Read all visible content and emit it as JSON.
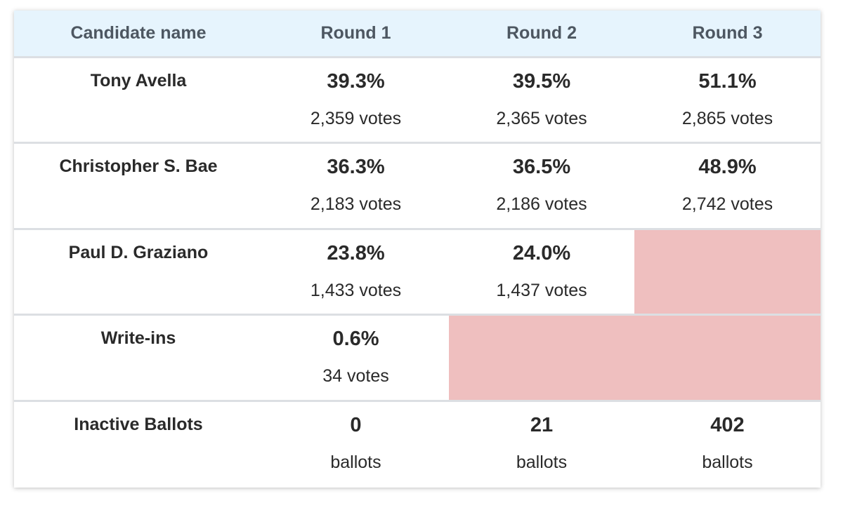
{
  "headers": [
    "Candidate name",
    "Round 1",
    "Round 2",
    "Round 3"
  ],
  "rows": [
    {
      "name": "Tony Avella",
      "rounds": [
        {
          "pct": "39.3%",
          "votes": "2,359 votes"
        },
        {
          "pct": "39.5%",
          "votes": "2,365 votes"
        },
        {
          "pct": "51.1%",
          "votes": "2,865 votes"
        }
      ]
    },
    {
      "name": "Christopher S. Bae",
      "rounds": [
        {
          "pct": "36.3%",
          "votes": "2,183 votes"
        },
        {
          "pct": "36.5%",
          "votes": "2,186 votes"
        },
        {
          "pct": "48.9%",
          "votes": "2,742 votes"
        }
      ]
    },
    {
      "name": "Paul D. Graziano",
      "rounds": [
        {
          "pct": "23.8%",
          "votes": "1,433 votes"
        },
        {
          "pct": "24.0%",
          "votes": "1,437 votes"
        }
      ]
    },
    {
      "name": "Write-ins",
      "rounds": [
        {
          "pct": "0.6%",
          "votes": "34 votes"
        }
      ]
    },
    {
      "name": "Inactive Ballots",
      "rounds": [
        {
          "pct": "0",
          "votes": "ballots"
        },
        {
          "pct": "21",
          "votes": "ballots"
        },
        {
          "pct": "402",
          "votes": "ballots"
        }
      ]
    }
  ],
  "colors": {
    "header_bg": "#e6f4fd",
    "eliminated_bg": "#efbfbf",
    "divider": "#dcdfe3"
  }
}
